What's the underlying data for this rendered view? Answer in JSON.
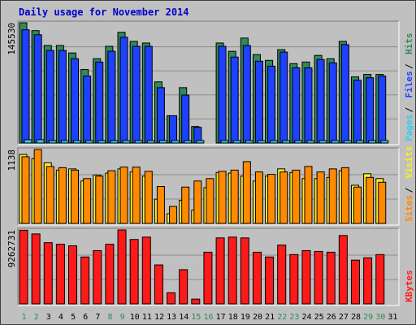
{
  "title": "Daily usage for November 2014",
  "colors": {
    "hits": "#2e8b57",
    "files": "#1e40ff",
    "pages": "#33ccee",
    "visits": "#ffee22",
    "sites": "#ff8a00",
    "kbytes": "#ff1a1a",
    "weekend_day_label": "#2e8b57",
    "weekday_label": "#000000"
  },
  "chart_data": [
    {
      "type": "bar",
      "panel": "hits_files_pages",
      "ymax_label": "145530",
      "right_labels": [
        {
          "text": "Pages",
          "color": "#33ccee"
        },
        {
          "text": "Files",
          "color": "#1e40ff"
        },
        {
          "text": "Hits",
          "color": "#2e8b57"
        }
      ],
      "categories": [
        "1",
        "2",
        "3",
        "4",
        "5",
        "6",
        "7",
        "8",
        "9",
        "10",
        "11",
        "12",
        "13",
        "14",
        "15",
        "16",
        "17",
        "18",
        "19",
        "20",
        "21",
        "22",
        "23",
        "24",
        "25",
        "26",
        "27",
        "28",
        "29",
        "30",
        "31"
      ],
      "series": [
        {
          "name": "Hits",
          "values": [
            145530,
            136000,
            118000,
            118000,
            109000,
            89000,
            102000,
            117000,
            134000,
            123000,
            121000,
            74000,
            33000,
            67000,
            20000,
            0,
            121000,
            111000,
            127000,
            107000,
            100000,
            113000,
            96000,
            98000,
            106000,
            102000,
            123000,
            80000,
            83000,
            83000,
            0
          ]
        },
        {
          "name": "Files",
          "values": [
            137000,
            131000,
            112000,
            112000,
            102000,
            81000,
            98000,
            111000,
            128000,
            117000,
            117000,
            67000,
            33000,
            58000,
            19000,
            0,
            117000,
            104000,
            118000,
            99000,
            93000,
            110000,
            91000,
            91000,
            101000,
            97000,
            119000,
            76000,
            79000,
            81000,
            0
          ]
        },
        {
          "name": "Pages",
          "values": [
            4000,
            4000,
            3000,
            3000,
            3000,
            3000,
            3000,
            3000,
            3000,
            3000,
            3000,
            3000,
            3000,
            3000,
            3000,
            0,
            3000,
            3000,
            3000,
            3000,
            3000,
            3000,
            3000,
            3000,
            3000,
            3000,
            3000,
            3000,
            3000,
            3000,
            0
          ]
        }
      ]
    },
    {
      "type": "bar",
      "panel": "visits_sites",
      "ymax_label": "1138",
      "right_labels": [
        {
          "text": "Sites",
          "color": "#ff8a00"
        },
        {
          "text": "Visits",
          "color": "#ffee22"
        }
      ],
      "categories": [
        "1",
        "2",
        "3",
        "4",
        "5",
        "6",
        "7",
        "8",
        "9",
        "10",
        "11",
        "12",
        "13",
        "14",
        "15",
        "16",
        "17",
        "18",
        "19",
        "20",
        "21",
        "22",
        "23",
        "24",
        "25",
        "26",
        "27",
        "28",
        "29",
        "30",
        "31"
      ],
      "series": [
        {
          "name": "Visits",
          "values": [
            1138,
            1070,
            1000,
            880,
            900,
            700,
            800,
            830,
            900,
            850,
            780,
            400,
            160,
            380,
            220,
            590,
            840,
            830,
            780,
            700,
            780,
            900,
            840,
            740,
            740,
            760,
            870,
            630,
            820,
            740,
            0
          ]
        },
        {
          "name": "Sites",
          "values": [
            1100,
            1220,
            940,
            920,
            880,
            740,
            780,
            870,
            930,
            930,
            860,
            610,
            280,
            600,
            700,
            740,
            860,
            880,
            1020,
            850,
            810,
            850,
            880,
            940,
            850,
            900,
            920,
            600,
            760,
            680,
            0
          ]
        }
      ]
    },
    {
      "type": "bar",
      "panel": "kbytes",
      "ymax_label": "9262731",
      "right_labels": [
        {
          "text": "KBytes",
          "color": "#ff1a1a"
        }
      ],
      "categories": [
        "1",
        "2",
        "3",
        "4",
        "5",
        "6",
        "7",
        "8",
        "9",
        "10",
        "11",
        "12",
        "13",
        "14",
        "15",
        "16",
        "17",
        "18",
        "19",
        "20",
        "21",
        "22",
        "23",
        "24",
        "25",
        "26",
        "27",
        "28",
        "29",
        "30",
        "31"
      ],
      "series": [
        {
          "name": "KBytes",
          "values": [
            9262731,
            8800000,
            7700000,
            7500000,
            7300000,
            5900000,
            6700000,
            7500000,
            9300000,
            8100000,
            8400000,
            4900000,
            1400000,
            4300000,
            600000,
            6500000,
            8300000,
            8400000,
            8300000,
            6500000,
            5900000,
            7400000,
            6200000,
            6700000,
            6600000,
            6500000,
            8600000,
            5500000,
            5800000,
            6200000,
            0
          ]
        }
      ]
    }
  ],
  "x_axis": {
    "labels": [
      "1",
      "2",
      "3",
      "4",
      "5",
      "6",
      "7",
      "8",
      "9",
      "10",
      "11",
      "12",
      "13",
      "14",
      "15",
      "16",
      "17",
      "18",
      "19",
      "20",
      "21",
      "22",
      "23",
      "24",
      "25",
      "26",
      "27",
      "28",
      "29",
      "30",
      "31"
    ],
    "weekend_days": [
      "1",
      "2",
      "8",
      "9",
      "15",
      "16",
      "22",
      "23",
      "29",
      "30"
    ]
  }
}
